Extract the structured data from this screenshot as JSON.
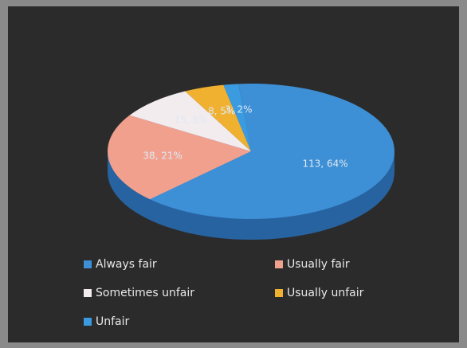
{
  "chart_data": {
    "type": "pie",
    "categories": [
      "Always fair",
      "Usually fair",
      "Sometimes unfair",
      "Usually unfair",
      "Unfair"
    ],
    "values": [
      113,
      38,
      15,
      8,
      3
    ],
    "value_labels": [
      "113, 64%",
      "38, 21%",
      "15, 8%",
      "8, 5%",
      "3, 2%"
    ],
    "colors": [
      "#3d8fd6",
      "#f2a08e",
      "#f3ecef",
      "#f0b030",
      "#3a9be0"
    ],
    "legend": "bottom"
  }
}
